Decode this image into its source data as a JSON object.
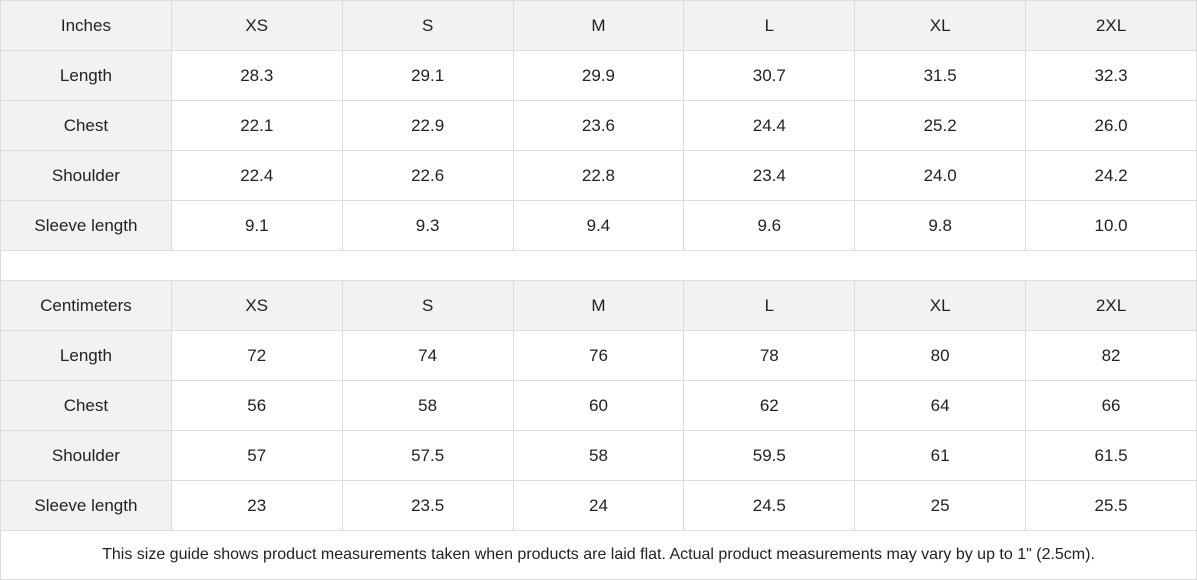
{
  "tables": [
    {
      "header": [
        "Inches",
        "XS",
        "S",
        "M",
        "L",
        "XL",
        "2XL"
      ],
      "rows": [
        [
          "Length",
          "28.3",
          "29.1",
          "29.9",
          "30.7",
          "31.5",
          "32.3"
        ],
        [
          "Chest",
          "22.1",
          "22.9",
          "23.6",
          "24.4",
          "25.2",
          "26.0"
        ],
        [
          "Shoulder",
          "22.4",
          "22.6",
          "22.8",
          "23.4",
          "24.0",
          "24.2"
        ],
        [
          "Sleeve length",
          "9.1",
          "9.3",
          "9.4",
          "9.6",
          "9.8",
          "10.0"
        ]
      ]
    },
    {
      "header": [
        "Centimeters",
        "XS",
        "S",
        "M",
        "L",
        "XL",
        "2XL"
      ],
      "rows": [
        [
          "Length",
          "72",
          "74",
          "76",
          "78",
          "80",
          "82"
        ],
        [
          "Chest",
          "56",
          "58",
          "60",
          "62",
          "64",
          "66"
        ],
        [
          "Shoulder",
          "57",
          "57.5",
          "58",
          "59.5",
          "61",
          "61.5"
        ],
        [
          "Sleeve length",
          "23",
          "23.5",
          "24",
          "24.5",
          "25",
          "25.5"
        ]
      ]
    }
  ],
  "footnote": "This size guide shows product measurements taken when products are laid flat.  Actual product measurements may vary by up to 1\" (2.5cm).",
  "colors": {
    "header_bg": "#f2f2f2",
    "border": "#dcdcdc"
  }
}
